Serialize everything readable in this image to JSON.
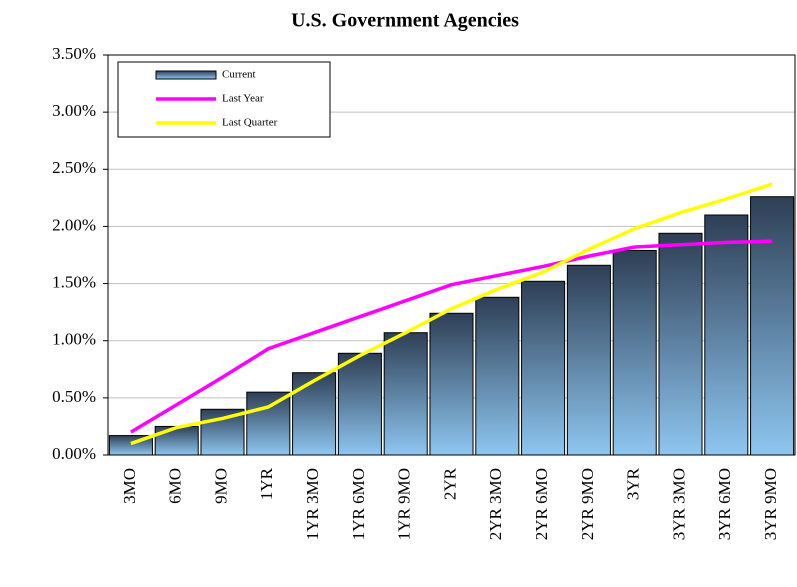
{
  "chart_data": {
    "type": "bar",
    "title": "U.S. Government Agencies",
    "categories": [
      "3MO",
      "6MO",
      "9MO",
      "1YR",
      "1YR 3MO",
      "1YR 6MO",
      "1YR 9MO",
      "2YR",
      "2YR 3MO",
      "2YR 6MO",
      "2YR 9MO",
      "3YR",
      "3YR 3MO",
      "3YR 6MO",
      "3YR 9MO"
    ],
    "series": [
      {
        "name": "Current",
        "type": "bar",
        "color": "#8ec6f0",
        "values": [
          0.17,
          0.25,
          0.4,
          0.55,
          0.72,
          0.89,
          1.07,
          1.24,
          1.38,
          1.52,
          1.66,
          1.79,
          1.94,
          2.1,
          2.26
        ]
      },
      {
        "name": "Last Year",
        "type": "line",
        "color": "#ff00ff",
        "values": [
          0.2,
          0.44,
          0.68,
          0.93,
          1.07,
          1.21,
          1.35,
          1.49,
          1.57,
          1.65,
          1.74,
          1.82,
          1.84,
          1.86,
          1.87
        ]
      },
      {
        "name": "Last Quarter",
        "type": "line",
        "color": "#ffff00",
        "values": [
          0.1,
          0.24,
          0.32,
          0.42,
          0.65,
          0.87,
          1.07,
          1.28,
          1.45,
          1.6,
          1.8,
          1.98,
          2.12,
          2.24,
          2.37
        ]
      }
    ],
    "ylim": [
      0,
      3.5
    ],
    "yticks": [
      {
        "value": 0,
        "label": "0.00%"
      },
      {
        "value": 0.5,
        "label": "0.50%"
      },
      {
        "value": 1,
        "label": "1.00%"
      },
      {
        "value": 1.5,
        "label": "1.50%"
      },
      {
        "value": 2,
        "label": "2.00%"
      },
      {
        "value": 2.5,
        "label": "2.50%"
      },
      {
        "value": 3,
        "label": "3.00%"
      },
      {
        "value": 3.5,
        "label": "3.50%"
      }
    ],
    "grid": true,
    "legend": "top-left"
  }
}
